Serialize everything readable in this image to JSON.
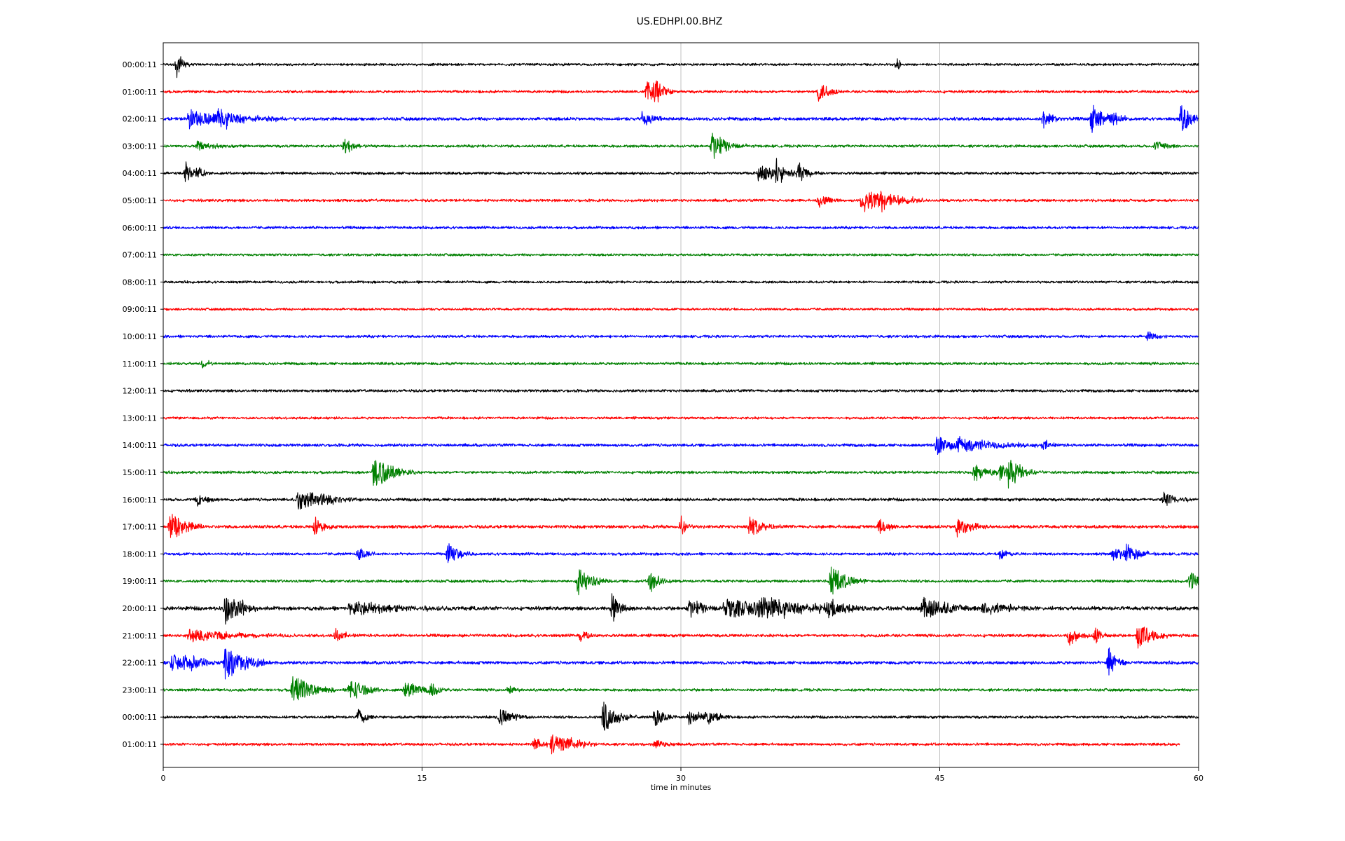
{
  "chart_data": {
    "type": "line",
    "title": "US.EDHPI.00.BHZ",
    "xlabel": "time in minutes",
    "ylabel": "",
    "xlim": [
      0,
      60
    ],
    "x_ticks": [
      0,
      15,
      30,
      45,
      60
    ],
    "vertical_grid": true,
    "color_cycle": [
      "#000000",
      "#ff0000",
      "#0000ff",
      "#008000"
    ],
    "series": [
      {
        "label": "00:00:11",
        "end": 60,
        "noise": 0.9,
        "events": [
          {
            "t": 0.8,
            "amp": 8,
            "dur": 0.3
          },
          {
            "t": 42.5,
            "amp": 6,
            "dur": 0.15
          }
        ]
      },
      {
        "label": "01:00:11",
        "end": 60,
        "noise": 1.0,
        "events": [
          {
            "t": 28.0,
            "amp": 6,
            "dur": 0.6
          },
          {
            "t": 28.5,
            "amp": 7,
            "dur": 0.5
          },
          {
            "t": 38.0,
            "amp": 6,
            "dur": 0.6
          }
        ]
      },
      {
        "label": "02:00:11",
        "end": 60,
        "noise": 1.2,
        "events": [
          {
            "t": 1.5,
            "amp": 5,
            "dur": 2.5
          },
          {
            "t": 3.2,
            "amp": 5,
            "dur": 1.0
          },
          {
            "t": 27.8,
            "amp": 6,
            "dur": 0.5
          },
          {
            "t": 51.0,
            "amp": 5,
            "dur": 0.6
          },
          {
            "t": 53.8,
            "amp": 8,
            "dur": 0.8
          },
          {
            "t": 55.0,
            "amp": 4,
            "dur": 0.4
          },
          {
            "t": 59.0,
            "amp": 9,
            "dur": 0.5
          }
        ]
      },
      {
        "label": "03:00:11",
        "end": 60,
        "noise": 1.0,
        "events": [
          {
            "t": 2.0,
            "amp": 3,
            "dur": 0.8
          },
          {
            "t": 10.5,
            "amp": 5,
            "dur": 0.5
          },
          {
            "t": 31.8,
            "amp": 8,
            "dur": 0.8
          },
          {
            "t": 57.5,
            "amp": 3,
            "dur": 0.8
          }
        ]
      },
      {
        "label": "04:00:11",
        "end": 60,
        "noise": 1.0,
        "events": [
          {
            "t": 1.3,
            "amp": 6,
            "dur": 0.4
          },
          {
            "t": 2.0,
            "amp": 5,
            "dur": 0.3
          },
          {
            "t": 34.5,
            "amp": 5,
            "dur": 1.5
          },
          {
            "t": 35.5,
            "amp": 6,
            "dur": 0.5
          },
          {
            "t": 36.8,
            "amp": 6,
            "dur": 0.4
          }
        ]
      },
      {
        "label": "05:00:11",
        "end": 60,
        "noise": 1.0,
        "events": [
          {
            "t": 38.0,
            "amp": 4,
            "dur": 0.6
          },
          {
            "t": 40.5,
            "amp": 7,
            "dur": 1.5
          },
          {
            "t": 41.5,
            "amp": 5,
            "dur": 1.0
          }
        ]
      },
      {
        "label": "06:00:11",
        "end": 60,
        "noise": 1.0,
        "events": []
      },
      {
        "label": "07:00:11",
        "end": 60,
        "noise": 0.9,
        "events": []
      },
      {
        "label": "08:00:11",
        "end": 60,
        "noise": 0.9,
        "events": []
      },
      {
        "label": "09:00:11",
        "end": 60,
        "noise": 0.9,
        "events": []
      },
      {
        "label": "10:00:11",
        "end": 60,
        "noise": 1.0,
        "events": [
          {
            "t": 57.0,
            "amp": 3,
            "dur": 0.6
          }
        ]
      },
      {
        "label": "11:00:11",
        "end": 60,
        "noise": 1.0,
        "events": [
          {
            "t": 2.3,
            "amp": 3,
            "dur": 0.3
          }
        ]
      },
      {
        "label": "12:00:11",
        "end": 60,
        "noise": 1.0,
        "events": []
      },
      {
        "label": "13:00:11",
        "end": 60,
        "noise": 0.9,
        "events": []
      },
      {
        "label": "14:00:11",
        "end": 60,
        "noise": 1.1,
        "events": [
          {
            "t": 44.8,
            "amp": 6,
            "dur": 0.8
          },
          {
            "t": 46.0,
            "amp": 5,
            "dur": 2.0
          },
          {
            "t": 51.0,
            "amp": 3,
            "dur": 0.5
          }
        ]
      },
      {
        "label": "15:00:11",
        "end": 60,
        "noise": 1.0,
        "events": [
          {
            "t": 12.2,
            "amp": 10,
            "dur": 1.0
          },
          {
            "t": 47.0,
            "amp": 5,
            "dur": 0.8
          },
          {
            "t": 48.5,
            "amp": 5,
            "dur": 0.6
          },
          {
            "t": 49.0,
            "amp": 7,
            "dur": 0.8
          }
        ]
      },
      {
        "label": "16:00:11",
        "end": 60,
        "noise": 1.1,
        "events": [
          {
            "t": 2.0,
            "amp": 4,
            "dur": 0.5
          },
          {
            "t": 7.8,
            "amp": 6,
            "dur": 1.5
          },
          {
            "t": 9.2,
            "amp": 5,
            "dur": 0.5
          },
          {
            "t": 58.0,
            "amp": 5,
            "dur": 0.7
          }
        ]
      },
      {
        "label": "17:00:11",
        "end": 60,
        "noise": 1.2,
        "events": [
          {
            "t": 0.4,
            "amp": 9,
            "dur": 0.8
          },
          {
            "t": 8.8,
            "amp": 6,
            "dur": 0.5
          },
          {
            "t": 30.0,
            "amp": 6,
            "dur": 0.3
          },
          {
            "t": 34.0,
            "amp": 6,
            "dur": 0.7
          },
          {
            "t": 41.5,
            "amp": 5,
            "dur": 0.5
          },
          {
            "t": 46.0,
            "amp": 6,
            "dur": 0.8
          }
        ]
      },
      {
        "label": "18:00:11",
        "end": 60,
        "noise": 1.0,
        "events": [
          {
            "t": 11.3,
            "amp": 4,
            "dur": 0.5
          },
          {
            "t": 16.5,
            "amp": 6,
            "dur": 0.6
          },
          {
            "t": 48.5,
            "amp": 3,
            "dur": 0.5
          },
          {
            "t": 55.0,
            "amp": 5,
            "dur": 0.6
          },
          {
            "t": 55.8,
            "amp": 7,
            "dur": 0.7
          }
        ]
      },
      {
        "label": "19:00:11",
        "end": 60,
        "noise": 1.0,
        "events": [
          {
            "t": 24.0,
            "amp": 8,
            "dur": 0.8
          },
          {
            "t": 28.2,
            "amp": 7,
            "dur": 0.5
          },
          {
            "t": 38.7,
            "amp": 9,
            "dur": 0.8
          },
          {
            "t": 59.5,
            "amp": 6,
            "dur": 0.5
          }
        ]
      },
      {
        "label": "20:00:11",
        "end": 60,
        "noise": 1.4,
        "events": [
          {
            "t": 3.6,
            "amp": 9,
            "dur": 0.8
          },
          {
            "t": 4.5,
            "amp": 3,
            "dur": 0.5
          },
          {
            "t": 10.8,
            "amp": 4,
            "dur": 3.0
          },
          {
            "t": 26.0,
            "amp": 8,
            "dur": 0.5
          },
          {
            "t": 30.5,
            "amp": 5,
            "dur": 1.0
          },
          {
            "t": 32.5,
            "amp": 5,
            "dur": 4.0
          },
          {
            "t": 34.5,
            "amp": 6,
            "dur": 2.0
          },
          {
            "t": 38.5,
            "amp": 5,
            "dur": 1.0
          },
          {
            "t": 44.0,
            "amp": 7,
            "dur": 1.5
          },
          {
            "t": 47.5,
            "amp": 4,
            "dur": 1.5
          }
        ]
      },
      {
        "label": "21:00:11",
        "end": 60,
        "noise": 1.1,
        "events": [
          {
            "t": 1.5,
            "amp": 4,
            "dur": 2.5
          },
          {
            "t": 10.0,
            "amp": 4,
            "dur": 0.5
          },
          {
            "t": 24.2,
            "amp": 4,
            "dur": 0.4
          },
          {
            "t": 52.5,
            "amp": 6,
            "dur": 0.5
          },
          {
            "t": 54.0,
            "amp": 5,
            "dur": 0.5
          },
          {
            "t": 56.5,
            "amp": 8,
            "dur": 0.8
          }
        ]
      },
      {
        "label": "22:00:11",
        "end": 60,
        "noise": 1.2,
        "events": [
          {
            "t": 0.5,
            "amp": 5,
            "dur": 1.0
          },
          {
            "t": 1.3,
            "amp": 5,
            "dur": 1.0
          },
          {
            "t": 3.6,
            "amp": 9,
            "dur": 1.2
          },
          {
            "t": 54.8,
            "amp": 9,
            "dur": 0.4
          }
        ]
      },
      {
        "label": "23:00:11",
        "end": 60,
        "noise": 1.0,
        "events": [
          {
            "t": 7.5,
            "amp": 9,
            "dur": 1.0
          },
          {
            "t": 10.8,
            "amp": 7,
            "dur": 0.8
          },
          {
            "t": 14.0,
            "amp": 5,
            "dur": 1.0
          },
          {
            "t": 15.5,
            "amp": 4,
            "dur": 0.5
          },
          {
            "t": 20.0,
            "amp": 3,
            "dur": 0.4
          }
        ]
      },
      {
        "label": "00:00:11",
        "end": 60,
        "noise": 1.0,
        "events": [
          {
            "t": 11.3,
            "amp": 5,
            "dur": 0.4
          },
          {
            "t": 19.5,
            "amp": 5,
            "dur": 0.8
          },
          {
            "t": 25.5,
            "amp": 9,
            "dur": 0.8
          },
          {
            "t": 28.5,
            "amp": 6,
            "dur": 0.5
          },
          {
            "t": 30.5,
            "amp": 5,
            "dur": 0.6
          },
          {
            "t": 31.5,
            "amp": 5,
            "dur": 0.6
          }
        ]
      },
      {
        "label": "01:00:11",
        "end": 58.9,
        "noise": 1.0,
        "events": [
          {
            "t": 21.5,
            "amp": 4,
            "dur": 0.5
          },
          {
            "t": 22.5,
            "amp": 6,
            "dur": 1.2
          },
          {
            "t": 23.5,
            "amp": 4,
            "dur": 0.4
          },
          {
            "t": 28.5,
            "amp": 3,
            "dur": 0.5
          }
        ]
      }
    ]
  }
}
